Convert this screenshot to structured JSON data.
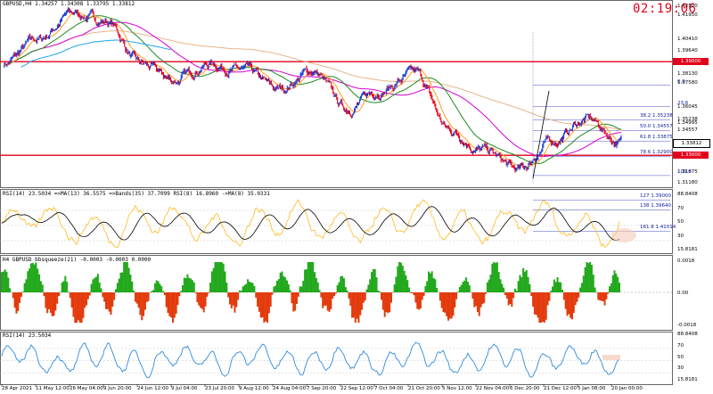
{
  "header": {
    "title": "GBPUSD,H4  1.34257 1.34308 1.33795 1.33812",
    "clock": "02:19:06"
  },
  "colors": {
    "bull_candle": "#1f3fd6",
    "bear_candle": "#e3001b",
    "ma_fast": "#ff9d1f",
    "ma_mid": "#1d8a1d",
    "ma_slow": "#d500d5",
    "ma_long": "#e8b48a",
    "ma_cyan": "#22a3e8",
    "level_line": "#e3001b",
    "fib_line": "#4a52c8",
    "rsi_line": "#ffb100",
    "rsi_ma": "#000000",
    "squeeze_up": "#22a81c",
    "squeeze_down": "#e33a0c",
    "rsi2_line": "#2f8bdf"
  },
  "main_pane": {
    "price_axis": [
      "1.42500",
      "1.41950",
      "1.40410",
      "1.39640",
      "1.39000",
      "1.38130",
      "1.37580",
      "1.36045",
      "1.35238",
      "1.34995",
      "1.34557",
      "1.33812",
      "1.32900",
      "1.31875",
      "1.31180"
    ],
    "price_boxes": [
      {
        "label": "1.39000",
        "kind": "level"
      },
      {
        "label": "1.33812",
        "kind": "current"
      },
      {
        "label": "1.33000",
        "kind": "level"
      }
    ],
    "fib_levels": [
      {
        "ratio": "161.8",
        "price": "1.41014"
      },
      {
        "ratio": "138",
        "price": "1.39640"
      },
      {
        "ratio": "127",
        "price": "1.39000"
      },
      {
        "ratio": "0.0",
        "price": ""
      },
      {
        "ratio": "23.6",
        "price": ""
      },
      {
        "ratio": "38.2",
        "price": "1.35238"
      },
      {
        "ratio": "50.0",
        "price": "1.34557"
      },
      {
        "ratio": "61.8",
        "price": "1.33875"
      },
      {
        "ratio": "78.6",
        "price": "1.32900"
      },
      {
        "ratio": "100.0",
        "price": ""
      }
    ]
  },
  "rsi_pane": {
    "title": "RSI(14) 23.5034  =>MA(13) 36.5575  =>Bands(35) 37.7099  RSI(8) 16.8960  ->MA(8) 35.0331",
    "axis": [
      "88.8408",
      "70",
      "50",
      "30",
      "15.8181"
    ]
  },
  "squeeze_pane": {
    "title": "H4 GBPUSD bbsqueeze(21) -0.0003 -0.0003 0.0000",
    "axis": [
      "0.0018",
      "0.00",
      "-0.0018"
    ]
  },
  "rsi2_pane": {
    "title": "RSI(14) 23.5034",
    "axis": [
      "88.8408",
      "70",
      "50",
      "30",
      "15.8181"
    ]
  },
  "dates": [
    "28 Apr 2021",
    "11 May 12:00",
    "26 May 04:00",
    "9 Jun 20:00",
    "24 Jun 12:00",
    "9 Jul 04:00",
    "23 Jul 20:00",
    "9 Aug 12:00",
    "24 Aug 04:00",
    "7 Sep 20:00",
    "22 Sep 12:00",
    "7 Oct 04:00",
    "21 Oct 20:00",
    "5 Nov 12:00",
    "22 Nov 04:00",
    "6 Dec 20:00",
    "21 Dec 12:00",
    "5 Jan 08:00",
    "20 Jan 00:00"
  ],
  "chart_data": {
    "type": "line",
    "instrument": "GBPUSD",
    "timeframe": "H4",
    "ohlc_last": {
      "open": 1.34257,
      "high": 1.34308,
      "low": 1.33795,
      "close": 1.33812
    },
    "x": [
      "28 Apr 2021",
      "11 May 12:00",
      "26 May 04:00",
      "9 Jun 20:00",
      "24 Jun 12:00",
      "9 Jul 04:00",
      "23 Jul 20:00",
      "9 Aug 12:00",
      "24 Aug 04:00",
      "7 Sep 20:00",
      "22 Sep 12:00",
      "7 Oct 04:00",
      "21 Oct 20:00",
      "5 Nov 12:00",
      "22 Nov 04:00",
      "6 Dec 20:00",
      "21 Dec 12:00",
      "5 Jan 08:00",
      "20 Jan 00:00"
    ],
    "series": [
      {
        "values": [
          1.389,
          1.404,
          1.421,
          1.416,
          1.388,
          1.378,
          1.389,
          1.384,
          1.372,
          1.384,
          1.36,
          1.372,
          1.382,
          1.346,
          1.333,
          1.32,
          1.339,
          1.353,
          1.338
        ]
      }
    ],
    "ylim": [
      1.3118,
      1.425
    ],
    "horizontal_levels": [
      1.39,
      1.33
    ],
    "current_price": 1.33812
  }
}
